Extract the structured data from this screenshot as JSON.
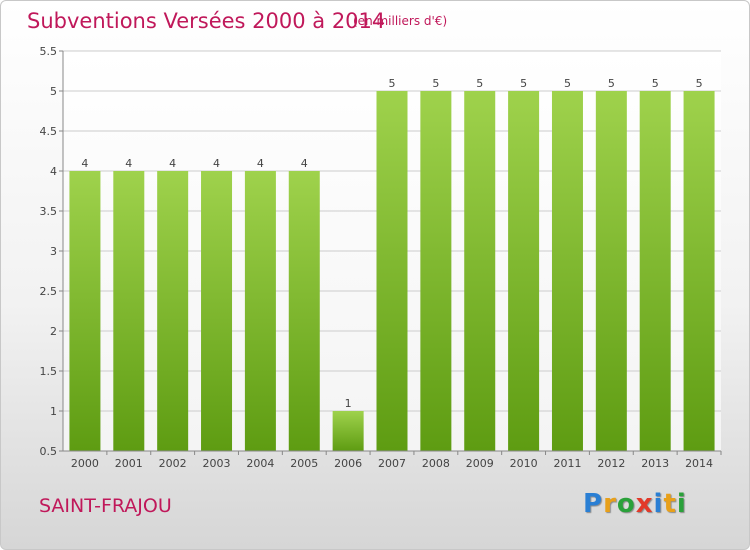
{
  "header": {
    "title": "Subventions Versées 2000 à 2014",
    "subtitle": "(en milliers d'€)"
  },
  "footer": {
    "commune": "SAINT-FRAJOU",
    "brand": [
      "P",
      "r",
      "o",
      "x",
      "i",
      "t",
      "i"
    ]
  },
  "colors": {
    "title": "#c0185a",
    "bar_top": "#9fd24c",
    "bar_bottom": "#5e9c12",
    "grid": "#cccccc"
  },
  "chart_data": {
    "type": "bar",
    "title": "Subventions Versées 2000 à 2014",
    "subtitle": "(en milliers d'€)",
    "xlabel": "",
    "ylabel": "",
    "categories": [
      "2000",
      "2001",
      "2002",
      "2003",
      "2004",
      "2005",
      "2006",
      "2007",
      "2008",
      "2009",
      "2010",
      "2011",
      "2012",
      "2013",
      "2014"
    ],
    "values": [
      4,
      4,
      4,
      4,
      4,
      4,
      1,
      5,
      5,
      5,
      5,
      5,
      5,
      5,
      5
    ],
    "data_labels": [
      "4",
      "4",
      "4",
      "4",
      "4",
      "4",
      "1",
      "5",
      "5",
      "5",
      "5",
      "5",
      "5",
      "5",
      "5"
    ],
    "ylim": [
      0.5,
      5.5
    ],
    "yticks": [
      0.5,
      1,
      1.5,
      2,
      2.5,
      3,
      3.5,
      4,
      4.5,
      5,
      5.5
    ],
    "ytick_labels": [
      "0.5",
      "1",
      "1.5",
      "2",
      "2.5",
      "3",
      "3.5",
      "4",
      "4.5",
      "5",
      "5.5"
    ],
    "grid": true,
    "legend": "none"
  }
}
